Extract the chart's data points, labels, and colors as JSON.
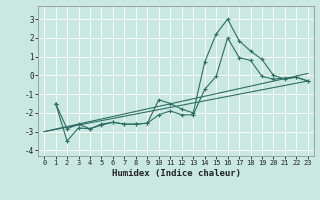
{
  "xlabel": "Humidex (Indice chaleur)",
  "bg_color": "#c8e8e0",
  "grid_color": "#ffffff",
  "line_color": "#2d6e64",
  "xlim": [
    -0.5,
    23.5
  ],
  "ylim": [
    -4.3,
    3.7
  ],
  "xticks": [
    0,
    1,
    2,
    3,
    4,
    5,
    6,
    7,
    8,
    9,
    10,
    11,
    12,
    13,
    14,
    15,
    16,
    17,
    18,
    19,
    20,
    21,
    22,
    23
  ],
  "yticks": [
    -4,
    -3,
    -2,
    -1,
    0,
    1,
    2,
    3
  ],
  "series": [
    {
      "x": [
        1,
        2,
        3,
        4,
        5,
        6,
        7,
        8,
        9,
        10,
        11,
        12,
        13,
        14,
        15,
        16,
        17,
        18,
        19,
        20,
        21,
        22,
        23
      ],
      "y": [
        -1.5,
        -2.85,
        -2.6,
        -2.85,
        -2.6,
        -2.5,
        -2.6,
        -2.6,
        -2.55,
        -1.3,
        -1.5,
        -1.8,
        -2.0,
        0.7,
        2.2,
        3.0,
        1.85,
        1.3,
        0.85,
        0.0,
        -0.2,
        -0.1,
        -0.3
      ],
      "has_markers": true
    },
    {
      "x": [
        1,
        2,
        3,
        4,
        5,
        6,
        7,
        8,
        9,
        10,
        11,
        12,
        13,
        14,
        15,
        16,
        17,
        18,
        19,
        20,
        21,
        22,
        23
      ],
      "y": [
        -1.5,
        -3.5,
        -2.8,
        -2.85,
        -2.65,
        -2.5,
        -2.6,
        -2.6,
        -2.55,
        -2.1,
        -1.9,
        -2.1,
        -2.1,
        -0.75,
        -0.05,
        2.0,
        0.95,
        0.8,
        -0.05,
        -0.2,
        -0.15,
        -0.1,
        -0.3
      ],
      "has_markers": true
    },
    {
      "x": [
        0,
        23
      ],
      "y": [
        -3.0,
        -0.3
      ],
      "has_markers": false
    },
    {
      "x": [
        0,
        23
      ],
      "y": [
        -3.0,
        0.1
      ],
      "has_markers": false
    }
  ]
}
